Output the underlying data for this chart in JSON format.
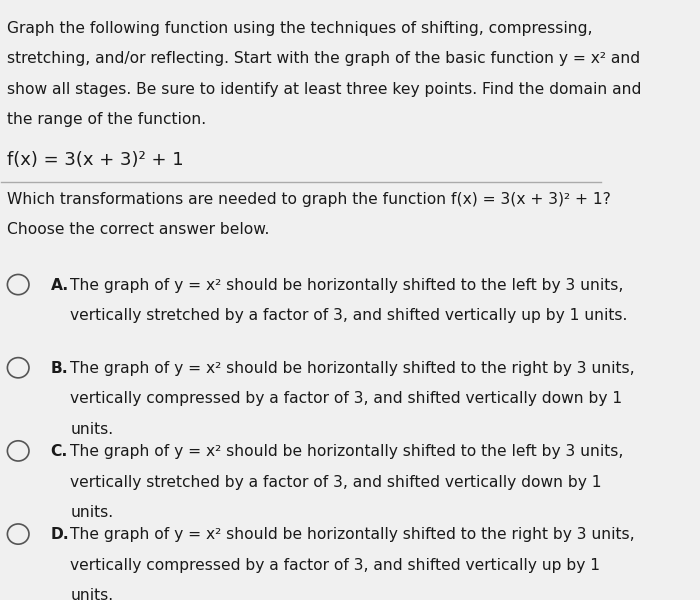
{
  "background_color": "#f0f0f0",
  "title_text": [
    "Graph the following function using the techniques of shifting, compressing,",
    "stretching, and/or reflecting. Start with the graph of the basic function y = x² and",
    "show all stages. Be sure to identify at least three key points. Find the domain and",
    "the range of the function."
  ],
  "function_text": "f(x) = 3(x + 3)² + 1",
  "question_text": [
    "Which transformations are needed to graph the function f(x) = 3(x + 3)² + 1?",
    "Choose the correct answer below."
  ],
  "options": [
    {
      "label": "A.",
      "lines": [
        "The graph of y = x² should be horizontally shifted to the left by 3 units,",
        "vertically stretched by a factor of 3, and shifted vertically up by 1 units."
      ]
    },
    {
      "label": "B.",
      "lines": [
        "The graph of y = x² should be horizontally shifted to the right by 3 units,",
        "vertically compressed by a factor of 3, and shifted vertically down by 1",
        "units."
      ]
    },
    {
      "label": "C.",
      "lines": [
        "The graph of y = x² should be horizontally shifted to the left by 3 units,",
        "vertically stretched by a factor of 3, and shifted vertically down by 1",
        "units."
      ]
    },
    {
      "label": "D.",
      "lines": [
        "The graph of y = x² should be horizontally shifted to the right by 3 units,",
        "vertically compressed by a factor of 3, and shifted vertically up by 1",
        "units."
      ]
    }
  ],
  "font_size_body": 11.2,
  "font_size_function": 13.0,
  "text_color": "#1a1a1a",
  "sep_color": "#aaaaaa",
  "circle_color": "#555555"
}
